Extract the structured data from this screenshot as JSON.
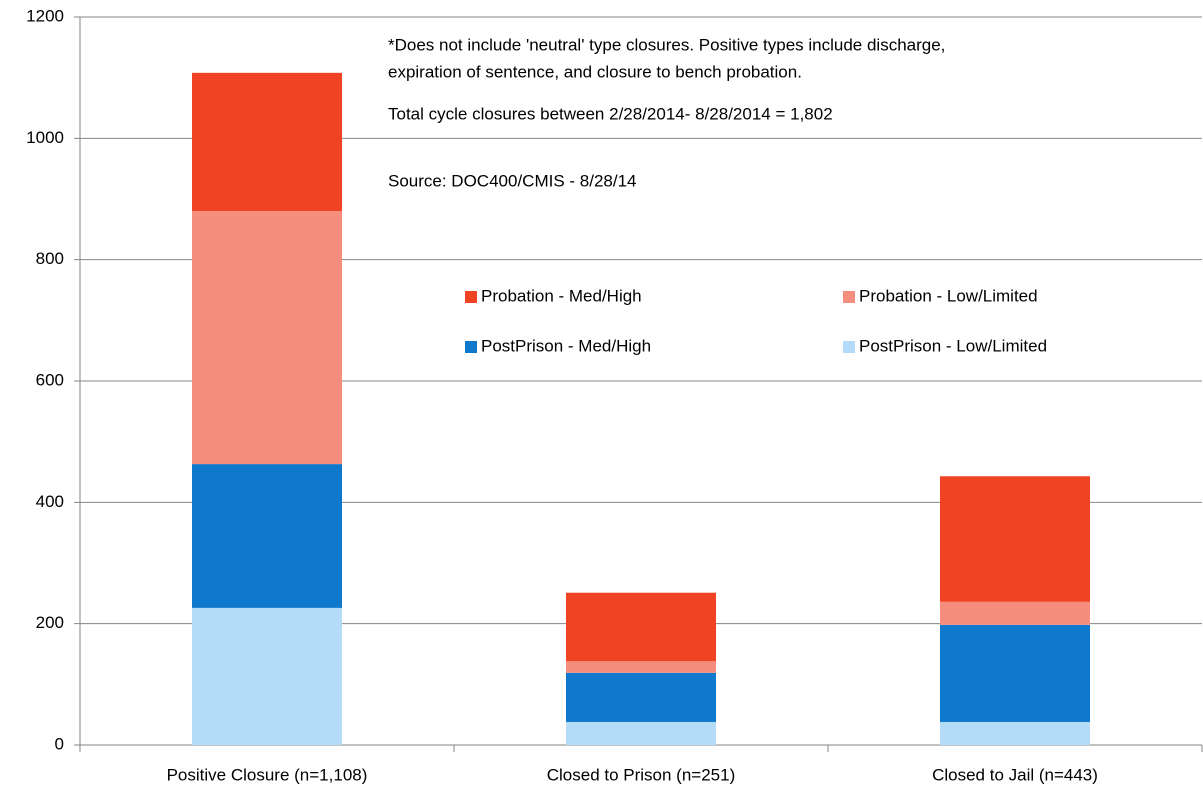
{
  "chart_data": {
    "type": "stacked_bar",
    "categories": [
      "Positive Closure (n=1,108)",
      "Closed to Prison (n=251)",
      "Closed to Jail (n=443)"
    ],
    "series": [
      {
        "name": "PostPrison - Low/Limited",
        "color": "#b4dbf8",
        "values": [
          226,
          38,
          38
        ]
      },
      {
        "name": "PostPrison - Med/High",
        "color": "#0e78cc",
        "values": [
          237,
          81,
          160
        ]
      },
      {
        "name": "Probation - Low/Limited",
        "color": "#f68e7e",
        "values": [
          417,
          19,
          38
        ]
      },
      {
        "name": "Probation - Med/High",
        "color": "#f04324",
        "values": [
          228,
          113,
          207
        ]
      }
    ],
    "notes": [
      "*Does not include 'neutral' type closures. Positive types include discharge,",
      "expiration of sentence, and closure to bench probation.",
      "Total cycle closures between 2/28/2014- 8/28/2014 = 1,802",
      "Source: DOC400/CMIS  - 8/28/14"
    ],
    "ylim": [
      0,
      1200
    ],
    "yticks": [
      0,
      200,
      400,
      600,
      800,
      1000,
      1200
    ],
    "grid": true
  }
}
